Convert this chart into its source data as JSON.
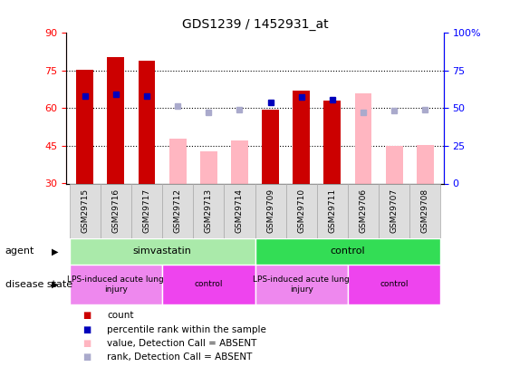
{
  "title": "GDS1239 / 1452931_at",
  "samples": [
    "GSM29715",
    "GSM29716",
    "GSM29717",
    "GSM29712",
    "GSM29713",
    "GSM29714",
    "GSM29709",
    "GSM29710",
    "GSM29711",
    "GSM29706",
    "GSM29707",
    "GSM29708"
  ],
  "count_values": [
    75.5,
    80.5,
    79.0,
    null,
    null,
    null,
    59.5,
    67.0,
    63.0,
    null,
    null,
    null
  ],
  "percentile_values": [
    65.0,
    65.5,
    65.0,
    null,
    null,
    null,
    62.5,
    64.5,
    63.5,
    null,
    null,
    null
  ],
  "absent_value_values": [
    null,
    null,
    null,
    48.0,
    43.0,
    47.0,
    null,
    null,
    null,
    66.0,
    45.0,
    45.5
  ],
  "absent_rank_values": [
    null,
    null,
    null,
    61.0,
    58.5,
    59.5,
    null,
    null,
    null,
    58.5,
    59.0,
    59.5
  ],
  "ylim_left": [
    30,
    90
  ],
  "ylim_right": [
    0,
    100
  ],
  "yticks_left": [
    30,
    45,
    60,
    75,
    90
  ],
  "yticks_right": [
    0,
    25,
    50,
    75,
    100
  ],
  "ytick_right_labels": [
    "0",
    "25",
    "50",
    "75",
    "100%"
  ],
  "agent_groups": [
    {
      "label": "simvastatin",
      "start": 0,
      "end": 6,
      "color": "#AAEAAA"
    },
    {
      "label": "control",
      "start": 6,
      "end": 12,
      "color": "#33DD55"
    }
  ],
  "disease_groups": [
    {
      "label": "LPS-induced acute lung\ninjury",
      "start": 0,
      "end": 3,
      "color": "#EE88EE"
    },
    {
      "label": "control",
      "start": 3,
      "end": 6,
      "color": "#EE44EE"
    },
    {
      "label": "LPS-induced acute lung\ninjury",
      "start": 6,
      "end": 9,
      "color": "#EE88EE"
    },
    {
      "label": "control",
      "start": 9,
      "end": 12,
      "color": "#EE44EE"
    }
  ],
  "count_color": "#CC0000",
  "percentile_color": "#0000BB",
  "absent_value_color": "#FFB6C1",
  "absent_rank_color": "#AAAACC",
  "bar_bottom": 30,
  "bar_width": 0.55,
  "tick_label_bg": "#DDDDDD",
  "tick_label_border": "#AAAAAA"
}
